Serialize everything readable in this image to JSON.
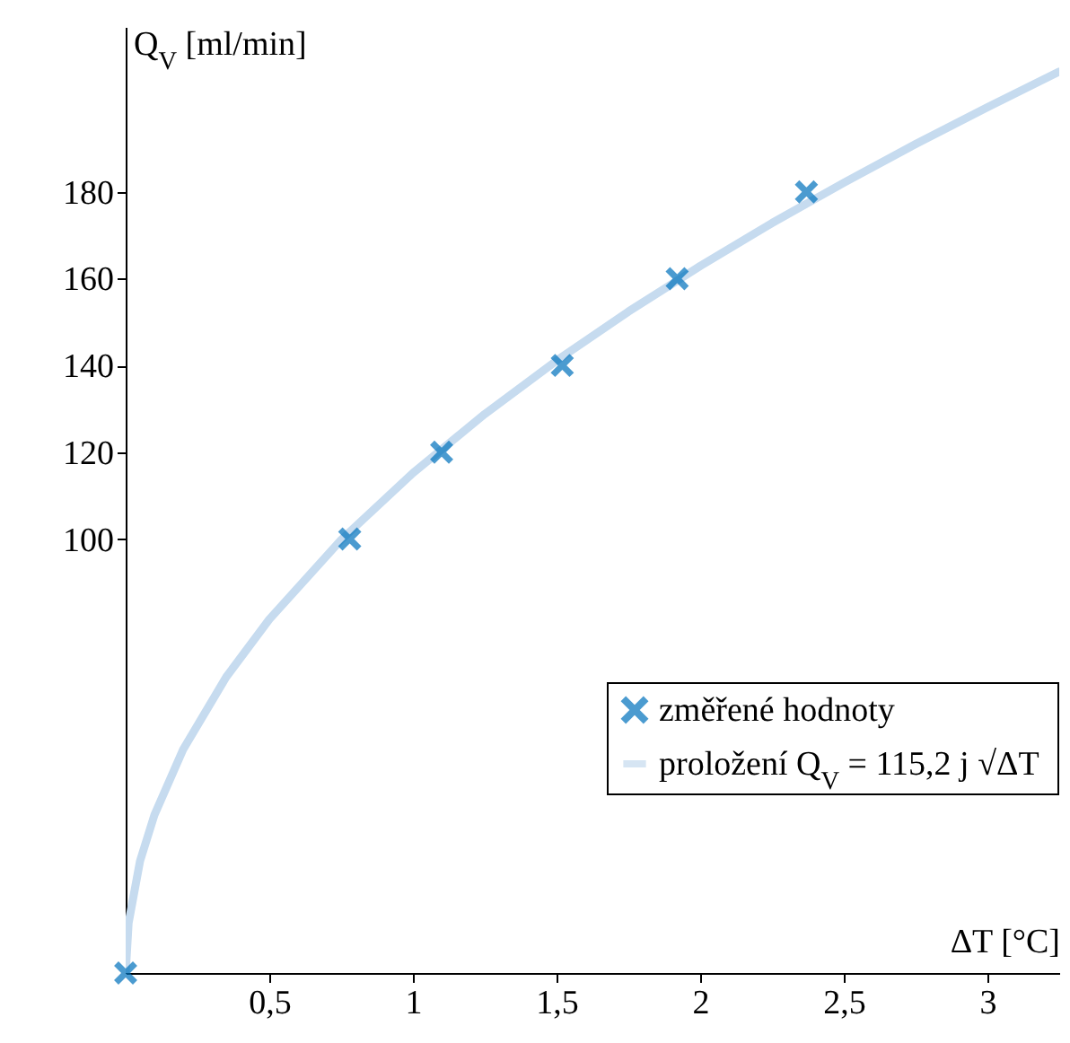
{
  "chart_data": {
    "type": "scatter",
    "xlabel": "ΔT [°C]",
    "ylabel": "Q$_{V}$ [ml/min]",
    "xlim": [
      0,
      3.25
    ],
    "ylim": [
      0,
      218
    ],
    "xticks": [
      {
        "value": 0.5,
        "label": "0,5"
      },
      1,
      {
        "value": 1.5,
        "label": "1,5"
      },
      2,
      {
        "value": 2.5,
        "label": "2,5"
      },
      3
    ],
    "yticks": [
      100,
      120,
      140,
      160,
      180
    ],
    "legend": "bottom right",
    "marker": "cross",
    "grid": false,
    "series": [
      {
        "name": "změřené hodnoty",
        "color": "#0072bd",
        "x": [
          0,
          0.78,
          1.1,
          1.52,
          1.92,
          2.37
        ],
        "values": [
          0,
          100,
          120,
          140,
          160,
          180
        ]
      },
      {
        "name": "proložení Q$_{V}$ = 115,2 j √ΔT",
        "type": "line",
        "color": "#c6dbef",
        "marker": "none",
        "line_style": "solid",
        "x": [
          0,
          0.01,
          0.05,
          0.1,
          0.2,
          0.35,
          0.5,
          0.75,
          1,
          1.25,
          1.5,
          1.75,
          2,
          2.25,
          2.5,
          2.75,
          3,
          3.25
        ],
        "values": [
          0,
          11.5,
          25.8,
          36.4,
          51.5,
          68.2,
          81.5,
          99.8,
          115.2,
          128.8,
          141.1,
          152.4,
          162.9,
          172.8,
          182.1,
          191,
          199.5,
          207.7
        ]
      }
    ]
  }
}
